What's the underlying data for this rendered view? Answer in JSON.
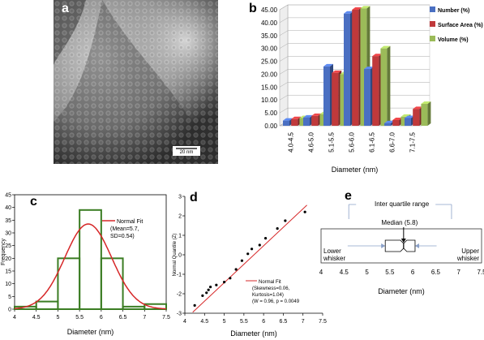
{
  "panels": {
    "a": {
      "label": "a",
      "scale_bar": "20 nm"
    },
    "b": {
      "label": "b"
    },
    "c": {
      "label": "c"
    },
    "d": {
      "label": "d"
    },
    "e": {
      "label": "e"
    }
  },
  "chart_data": [
    {
      "panel": "b",
      "type": "bar",
      "style": "3d-clustered",
      "categories": [
        "4.0-4.5",
        "4.6-5.0",
        "5.1-5.5",
        "5.6-6.0",
        "6.1-6.5",
        "6.6-7.0",
        "7.1-7.5"
      ],
      "series": [
        {
          "name": "Number (%)",
          "color": "#4a6fc2",
          "values": [
            2.0,
            3.2,
            23.0,
            43.5,
            22.0,
            1.0,
            3.0
          ]
        },
        {
          "name": "Surface Area (%)",
          "color": "#c0393b",
          "values": [
            2.6,
            3.8,
            20.5,
            45.0,
            27.0,
            2.2,
            6.5
          ]
        },
        {
          "name": "Volume (%)",
          "color": "#9bbb59",
          "values": [
            3.0,
            4.5,
            20.0,
            45.5,
            30.0,
            3.5,
            8.5
          ]
        }
      ],
      "xlabel": "Diameter (nm)",
      "ylabel": "",
      "ylim": [
        0,
        45
      ],
      "yticks": [
        "0.00",
        "5.00",
        "10.00",
        "15.00",
        "20.00",
        "25.00",
        "30.00",
        "35.00",
        "40.00",
        "45.00"
      ],
      "legend_placement": "top-right"
    },
    {
      "panel": "c",
      "type": "bar",
      "style": "histogram-with-fit",
      "bins": [
        {
          "start": 4.0,
          "end": 4.5,
          "count": 1
        },
        {
          "start": 4.5,
          "end": 5.0,
          "count": 3
        },
        {
          "start": 5.0,
          "end": 5.5,
          "count": 20
        },
        {
          "start": 5.5,
          "end": 6.0,
          "count": 39
        },
        {
          "start": 6.0,
          "end": 6.5,
          "count": 20
        },
        {
          "start": 6.5,
          "end": 7.0,
          "count": 1
        },
        {
          "start": 7.0,
          "end": 7.5,
          "count": 2
        }
      ],
      "fit": {
        "name": "Normal Fit",
        "mean": 5.7,
        "sd": 0.54,
        "peak": 33.5,
        "legend_lines": [
          "Normal Fit",
          "(Mean=5.7,",
          "SD=0.54)"
        ]
      },
      "xlabel": "Diameter (nm)",
      "ylabel": "Frequency",
      "xlim": [
        4.0,
        7.5
      ],
      "ylim": [
        0,
        45
      ],
      "xticks": [
        "4",
        "4.5",
        "5",
        "5.5",
        "6",
        "6.5",
        "7",
        "7.5"
      ],
      "yticks": [
        "0",
        "5",
        "10",
        "15",
        "20",
        "25",
        "30",
        "35",
        "40",
        "45"
      ],
      "legend_placement": "top-right"
    },
    {
      "panel": "d",
      "type": "scatter",
      "style": "normal-quantile-plot",
      "points": [
        [
          4.25,
          -2.6
        ],
        [
          4.45,
          -2.1
        ],
        [
          4.55,
          -1.95
        ],
        [
          4.6,
          -1.8
        ],
        [
          4.65,
          -1.65
        ],
        [
          4.8,
          -1.55
        ],
        [
          5.0,
          -1.4
        ],
        [
          5.15,
          -1.2
        ],
        [
          5.3,
          -0.75
        ],
        [
          5.45,
          -0.3
        ],
        [
          5.6,
          0.05
        ],
        [
          5.7,
          0.3
        ],
        [
          5.9,
          0.5
        ],
        [
          6.05,
          0.85
        ],
        [
          6.35,
          1.35
        ],
        [
          6.55,
          1.75
        ],
        [
          7.05,
          2.2
        ]
      ],
      "fit_line": {
        "name": "Normal Fit",
        "x": [
          4.2,
          7.1
        ],
        "y": [
          -2.95,
          2.55
        ]
      },
      "legend_lines": [
        "Normal Fit",
        "(Skewness=0.06,",
        "Kurtosis=1.04)",
        "(W = 0.96, p = 0.0049"
      ],
      "xlabel": "Diameter (nm)",
      "ylabel": "Normal Quantile (Z)",
      "xlim": [
        4,
        7.5
      ],
      "ylim": [
        -3,
        3
      ],
      "xticks": [
        "4",
        "4.5",
        "5",
        "5.5",
        "6",
        "6.5",
        "7",
        "7.5"
      ],
      "yticks": [
        "-3",
        "-2",
        "-1",
        "0",
        "1",
        "2",
        "3"
      ],
      "legend_placement": "bottom-right"
    },
    {
      "panel": "e",
      "type": "box",
      "min": 4.05,
      "q1": 5.4,
      "median": 5.8,
      "q3": 6.05,
      "max": 7.05,
      "labels": {
        "iqr": "Inter quartile range",
        "median": "Median (5.8)",
        "lower": [
          "Lower",
          "whisker"
        ],
        "upper": [
          "Upper",
          "whisker"
        ]
      },
      "xlabel": "Diameter (nm)",
      "xlim": [
        4,
        7.5
      ],
      "xticks": [
        "4",
        "4.5",
        "5",
        "5.5",
        "6",
        "6.5",
        "7",
        "7.5"
      ]
    }
  ]
}
